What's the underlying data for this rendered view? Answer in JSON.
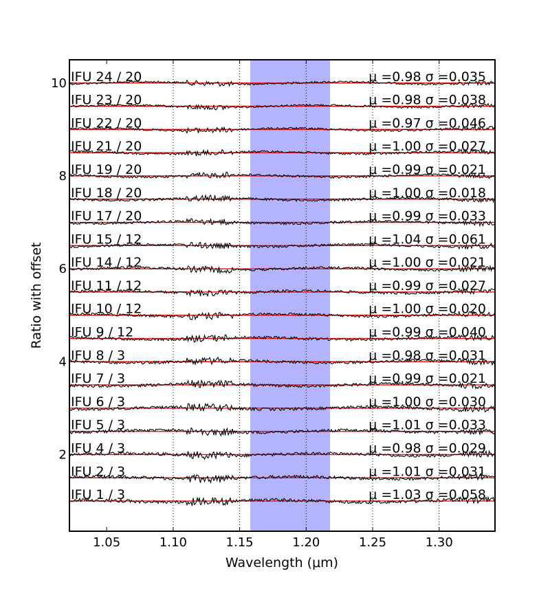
{
  "chart_data": {
    "type": "line",
    "xlabel": "Wavelength (μm)",
    "ylabel": "Ratio with offset",
    "xlim": [
      1.022,
      1.342
    ],
    "ylim": [
      0.35,
      10.5
    ],
    "x_ticks": [
      1.05,
      1.1,
      1.15,
      1.2,
      1.25,
      1.3
    ],
    "x_tick_labels": [
      "1.05",
      "1.10",
      "1.15",
      "1.20",
      "1.25",
      "1.30"
    ],
    "y_ticks": [
      2,
      4,
      6,
      8,
      10
    ],
    "y_tick_labels": [
      "2",
      "4",
      "6",
      "8",
      "10"
    ],
    "vertical_dotted_lines": [
      1.1,
      1.15,
      1.2,
      1.25,
      1.3
    ],
    "shaded_band": {
      "x": [
        1.158,
        1.218
      ],
      "color": "#b3b3ff"
    },
    "reference_line_color": "#ff0000",
    "series_color": "#000000",
    "series": [
      {
        "label": "IFU 24 / 20",
        "offset": 10.0,
        "stat": "μ =0.98 σ =0.035"
      },
      {
        "label": "IFU 23 / 20",
        "offset": 9.5,
        "stat": "μ =0.98 σ =0.038"
      },
      {
        "label": "IFU 22 / 20",
        "offset": 9.0,
        "stat": "μ =0.97 σ =0.046"
      },
      {
        "label": "IFU 21 / 20",
        "offset": 8.5,
        "stat": "μ =1.00 σ =0.027"
      },
      {
        "label": "IFU 19 / 20",
        "offset": 8.0,
        "stat": "μ =0.99 σ =0.021"
      },
      {
        "label": "IFU 18 / 20",
        "offset": 7.5,
        "stat": "μ =1.00 σ =0.018"
      },
      {
        "label": "IFU 17 / 20",
        "offset": 7.0,
        "stat": "μ =0.99 σ =0.033"
      },
      {
        "label": "IFU 15 / 12",
        "offset": 6.5,
        "stat": "μ =1.04 σ =0.061"
      },
      {
        "label": "IFU 14 / 12",
        "offset": 6.0,
        "stat": "μ =1.00 σ =0.021"
      },
      {
        "label": "IFU 11 / 12",
        "offset": 5.5,
        "stat": "μ =0.99 σ =0.027"
      },
      {
        "label": "IFU 10 / 12",
        "offset": 5.0,
        "stat": "μ =1.00 σ =0.020"
      },
      {
        "label": "IFU 9 / 12",
        "offset": 4.5,
        "stat": "μ =0.99 σ =0.040"
      },
      {
        "label": "IFU 8 / 3",
        "offset": 4.0,
        "stat": "μ =0.98 σ =0.031"
      },
      {
        "label": "IFU 7 / 3",
        "offset": 3.5,
        "stat": "μ =0.99 σ =0.021"
      },
      {
        "label": "IFU 6 / 3",
        "offset": 3.0,
        "stat": "μ =1.00 σ =0.030"
      },
      {
        "label": "IFU 5 / 3",
        "offset": 2.5,
        "stat": "μ =1.01 σ =0.033"
      },
      {
        "label": "IFU 4 / 3",
        "offset": 2.0,
        "stat": "μ =0.98 σ =0.029"
      },
      {
        "label": "IFU 2 / 3",
        "offset": 1.5,
        "stat": "μ =1.01 σ =0.031"
      },
      {
        "label": "IFU 1 / 3",
        "offset": 1.0,
        "stat": "μ =1.03 σ =0.058"
      }
    ]
  }
}
